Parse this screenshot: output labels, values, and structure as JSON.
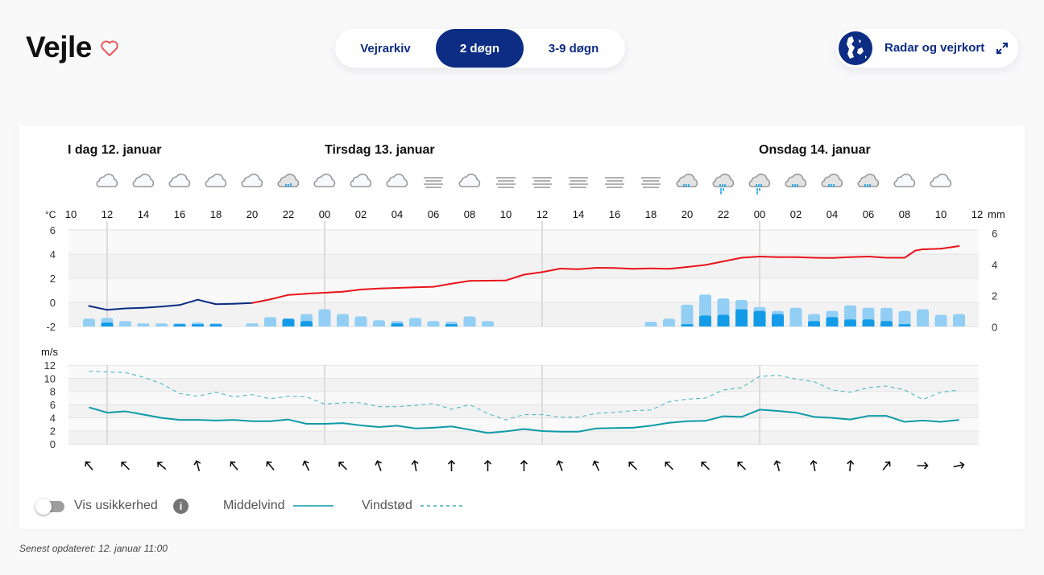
{
  "header": {
    "city": "Vejle",
    "tabs": [
      {
        "label": "Vejrarkiv",
        "active": false
      },
      {
        "label": "2 døgn",
        "active": true
      },
      {
        "label": "3-9 døgn",
        "active": false
      }
    ],
    "radar_label": "Radar og vejrkort"
  },
  "colors": {
    "brand": "#0d2d84",
    "temp_warm": "#e8141a",
    "temp_cold": "#0c2d83",
    "precip_max": "#93cff5",
    "precip_min": "#139be8",
    "wind": "#0e9aa7",
    "heart": "#e85858"
  },
  "days": [
    "I dag 12. januar",
    "Tirsdag 13. januar",
    "Onsdag 14. januar"
  ],
  "chart_data": {
    "type": "line",
    "start": "12. januar 10:00",
    "x_unit": "hours since start",
    "hour_labels": [
      "10",
      "12",
      "14",
      "16",
      "18",
      "20",
      "22",
      "00",
      "02",
      "04",
      "06",
      "08",
      "10",
      "12",
      "14",
      "16",
      "18",
      "20",
      "22",
      "00",
      "02",
      "04",
      "06",
      "08",
      "10",
      "12"
    ],
    "temperature": {
      "unit": "°C",
      "ylim": [
        -2,
        6
      ],
      "ticks": [
        "6",
        "4",
        "2",
        "0",
        "-2"
      ],
      "points": [
        [
          1,
          -0.3
        ],
        [
          2,
          -0.62
        ],
        [
          3,
          -0.5
        ],
        [
          4,
          -0.45
        ],
        [
          5,
          -0.35
        ],
        [
          6,
          -0.22
        ],
        [
          7,
          0.22
        ],
        [
          8,
          -0.15
        ],
        [
          9,
          -0.12
        ],
        [
          10,
          -0.05
        ],
        [
          11,
          0.25
        ],
        [
          12,
          0.62
        ],
        [
          13,
          0.72
        ],
        [
          14,
          0.8
        ],
        [
          15,
          0.88
        ],
        [
          16,
          1.07
        ],
        [
          17,
          1.15
        ],
        [
          18,
          1.2
        ],
        [
          19,
          1.25
        ],
        [
          20,
          1.29
        ],
        [
          21,
          1.55
        ],
        [
          22,
          1.78
        ],
        [
          23,
          1.8
        ],
        [
          24,
          1.82
        ],
        [
          25,
          2.3
        ],
        [
          26,
          2.51
        ],
        [
          27,
          2.8
        ],
        [
          28,
          2.75
        ],
        [
          29,
          2.87
        ],
        [
          30,
          2.85
        ],
        [
          31,
          2.78
        ],
        [
          32,
          2.82
        ],
        [
          33,
          2.78
        ],
        [
          34,
          2.93
        ],
        [
          35,
          3.1
        ],
        [
          36,
          3.4
        ],
        [
          37,
          3.7
        ],
        [
          38,
          3.8
        ],
        [
          39,
          3.75
        ],
        [
          40,
          3.75
        ],
        [
          41,
          3.7
        ],
        [
          42,
          3.68
        ],
        [
          43,
          3.75
        ],
        [
          44,
          3.8
        ],
        [
          45,
          3.7
        ],
        [
          46,
          3.7
        ],
        [
          46.6,
          4.3
        ],
        [
          47,
          4.4
        ],
        [
          48,
          4.45
        ],
        [
          49,
          4.67
        ]
      ]
    },
    "precipitation": {
      "unit": "mm",
      "ylim": [
        0,
        6
      ],
      "ticks": [
        "6",
        "4",
        "2",
        "0"
      ],
      "bars": [
        [
          1,
          0.5,
          0
        ],
        [
          2,
          0.55,
          0.25
        ],
        [
          3,
          0.35,
          0
        ],
        [
          4,
          0.2,
          0
        ],
        [
          5,
          0.2,
          0
        ],
        [
          6,
          0.2,
          0.15
        ],
        [
          7,
          0.25,
          0.15
        ],
        [
          8,
          0.2,
          0.15
        ],
        [
          10,
          0.2,
          0
        ],
        [
          11,
          0.6,
          0
        ],
        [
          12,
          0.5,
          0.5
        ],
        [
          13,
          0.8,
          0.35
        ],
        [
          14,
          1.1,
          0
        ],
        [
          15,
          0.8,
          0
        ],
        [
          16,
          0.65,
          0
        ],
        [
          17,
          0.4,
          0
        ],
        [
          18,
          0.35,
          0.2
        ],
        [
          19,
          0.55,
          0
        ],
        [
          20,
          0.35,
          0
        ],
        [
          21,
          0.3,
          0.15
        ],
        [
          22,
          0.65,
          0
        ],
        [
          23,
          0.35,
          0
        ],
        [
          32,
          0.3,
          0
        ],
        [
          33,
          0.5,
          0
        ],
        [
          34,
          1.4,
          0.15
        ],
        [
          35,
          2.05,
          0.7
        ],
        [
          36,
          1.8,
          0.75
        ],
        [
          37,
          1.7,
          1.1
        ],
        [
          38,
          1.25,
          1.0
        ],
        [
          39,
          1.0,
          0.8
        ],
        [
          40,
          1.2,
          0
        ],
        [
          41,
          0.8,
          0.35
        ],
        [
          42,
          1.0,
          0.6
        ],
        [
          43,
          1.35,
          0.45
        ],
        [
          44,
          1.2,
          0.45
        ],
        [
          45,
          1.2,
          0.35
        ],
        [
          46,
          1.0,
          0.15
        ],
        [
          47,
          1.1,
          0
        ],
        [
          48,
          0.75,
          0
        ],
        [
          49,
          0.8,
          0
        ]
      ]
    },
    "wind": {
      "unit": "m/s",
      "ylim": [
        0,
        12
      ],
      "ticks": [
        "12",
        "10",
        "8",
        "6",
        "4",
        "2",
        "0"
      ],
      "series": [
        {
          "name": "Middelvind",
          "style": "solid",
          "values": [
            5.6,
            4.8,
            5.0,
            4.5,
            4.0,
            3.7,
            3.7,
            3.6,
            3.7,
            3.5,
            3.5,
            3.75,
            3.1,
            3.1,
            3.2,
            2.85,
            2.6,
            2.8,
            2.4,
            2.5,
            2.7,
            2.2,
            1.7,
            1.95,
            2.3,
            2.0,
            1.9,
            1.9,
            2.4,
            2.45,
            2.5,
            2.8,
            3.25,
            3.5,
            3.55,
            4.25,
            4.15,
            5.25,
            5.05,
            4.8,
            4.15,
            4.0,
            3.75,
            4.3,
            4.3,
            3.4,
            3.6,
            3.4,
            3.7
          ]
        },
        {
          "name": "Vindstød",
          "style": "dashed",
          "values": [
            11.1,
            11.0,
            10.9,
            10.2,
            9.2,
            7.7,
            7.3,
            7.9,
            7.2,
            7.55,
            6.9,
            7.3,
            7.2,
            6.1,
            6.3,
            6.3,
            5.7,
            5.7,
            5.9,
            6.2,
            5.3,
            6.0,
            4.65,
            3.7,
            4.5,
            4.5,
            4.1,
            4.1,
            4.7,
            4.85,
            5.1,
            5.2,
            6.45,
            6.85,
            7.0,
            8.25,
            8.6,
            10.3,
            10.5,
            9.9,
            9.5,
            8.25,
            7.9,
            8.6,
            8.85,
            8.25,
            6.8,
            7.9,
            8.25
          ]
        }
      ],
      "direction_deg": [
        -40,
        -45,
        -50,
        -15,
        -40,
        -40,
        -25,
        -45,
        -20,
        -10,
        0,
        0,
        0,
        -20,
        -25,
        -45,
        -45,
        -45,
        -45,
        -15,
        -10,
        5,
        40,
        90,
        78
      ]
    },
    "symbols": [
      "cloud",
      "cloud",
      "cloud",
      "cloud",
      "cloud",
      "light-rain",
      "cloud",
      "cloud",
      "cloud",
      "fog",
      "cloud",
      "fog",
      "fog",
      "fog",
      "fog",
      "fog",
      "rain",
      "heavy-rain",
      "heavy-rain",
      "rain",
      "rain",
      "rain",
      "cloud",
      "cloud"
    ]
  },
  "legend": {
    "uncertainty": "Vis usikkerhed",
    "info": "i",
    "mean_wind": "Middelvind",
    "gust": "Vindstød"
  },
  "footer": "Senest opdateret: 12. januar 11:00"
}
